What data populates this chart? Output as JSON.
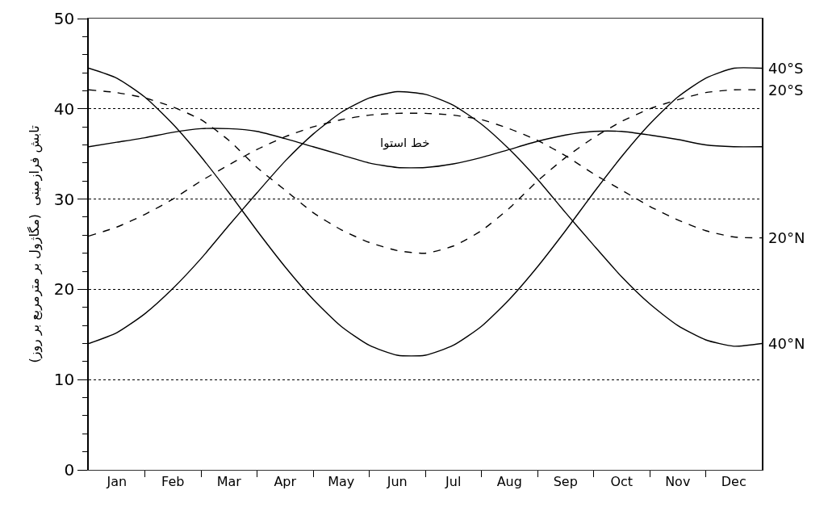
{
  "chart_data": {
    "type": "line",
    "ylabel": "تابش فرازمینی  (مگاژول بر مترمربع بر روز)",
    "categories": [
      null,
      "Jan",
      null,
      "Feb",
      null,
      "Mar",
      null,
      "Apr",
      null,
      "May",
      null,
      "Jun",
      null,
      "Jul",
      null,
      "Aug",
      null,
      "Sep",
      null,
      "Oct",
      null,
      "Nov",
      null,
      "Dec",
      null
    ],
    "ylim": [
      0,
      50
    ],
    "yticks": [
      0,
      10,
      20,
      30,
      40,
      50,
      {
        "value": 2,
        "label": null
      },
      {
        "value": 4,
        "label": null
      },
      {
        "value": 6,
        "label": null
      },
      {
        "value": 8,
        "label": null
      },
      {
        "value": 12,
        "label": null
      },
      {
        "value": 14,
        "label": null
      },
      {
        "value": 16,
        "label": null
      },
      {
        "value": 18,
        "label": null
      },
      {
        "value": 22,
        "label": null
      },
      {
        "value": 24,
        "label": null
      },
      {
        "value": 26,
        "label": null
      },
      {
        "value": 28,
        "label": null
      },
      {
        "value": 32,
        "label": null
      },
      {
        "value": 34,
        "label": null
      },
      {
        "value": 36,
        "label": null
      },
      {
        "value": 38,
        "label": null
      },
      {
        "value": 42,
        "label": null
      },
      {
        "value": 44,
        "label": null
      },
      {
        "value": 46,
        "label": null
      },
      {
        "value": 48,
        "label": null
      }
    ],
    "grid": "y",
    "legend": false,
    "marker": "none",
    "series": [
      {
        "name": "40°S",
        "color": "#000000",
        "line_style": "solid",
        "values": [
          44.5,
          43.4,
          41.3,
          38.3,
          34.7,
          30.7,
          26.5,
          22.5,
          18.9,
          15.9,
          13.8,
          12.7,
          12.7,
          13.8,
          15.9,
          18.9,
          22.5,
          26.5,
          30.7,
          34.7,
          38.3,
          41.3,
          43.4,
          44.5,
          44.5
        ]
      },
      {
        "name": "20°S",
        "color": "#000000",
        "line_style": "dashed",
        "values": [
          42.1,
          41.8,
          41.2,
          40.2,
          38.8,
          36.5,
          33.5,
          31.0,
          28.5,
          26.6,
          25.2,
          24.3,
          24.0,
          24.8,
          26.5,
          29.0,
          32.0,
          34.6,
          36.8,
          38.6,
          40.0,
          41.0,
          41.8,
          42.1,
          42.1
        ]
      },
      {
        "color": "#000000",
        "line_style": "solid",
        "values": [
          35.8,
          36.3,
          36.8,
          37.4,
          37.8,
          37.8,
          37.5,
          36.7,
          35.8,
          34.9,
          34.0,
          33.5,
          33.5,
          33.9,
          34.6,
          35.5,
          36.4,
          37.1,
          37.5,
          37.5,
          37.1,
          36.6,
          36.0,
          35.8,
          35.8
        ]
      },
      {
        "name": "20°N",
        "color": "#000000",
        "line_style": "dashed",
        "values": [
          25.9,
          26.9,
          28.3,
          30.0,
          32.0,
          33.8,
          35.5,
          36.9,
          38.0,
          38.8,
          39.3,
          39.5,
          39.5,
          39.3,
          38.8,
          37.8,
          36.5,
          34.8,
          32.8,
          31.0,
          29.2,
          27.7,
          26.5,
          25.8,
          25.7
        ]
      },
      {
        "name": "40°N",
        "color": "#000000",
        "line_style": "solid",
        "values": [
          14.0,
          15.2,
          17.3,
          20.1,
          23.4,
          27.1,
          30.7,
          34.2,
          37.2,
          39.6,
          41.2,
          41.9,
          41.6,
          40.4,
          38.3,
          35.5,
          32.2,
          28.5,
          24.9,
          21.4,
          18.4,
          16.0,
          14.4,
          13.7,
          14.0
        ]
      }
    ],
    "annotations": [
      "خط استوا"
    ]
  }
}
